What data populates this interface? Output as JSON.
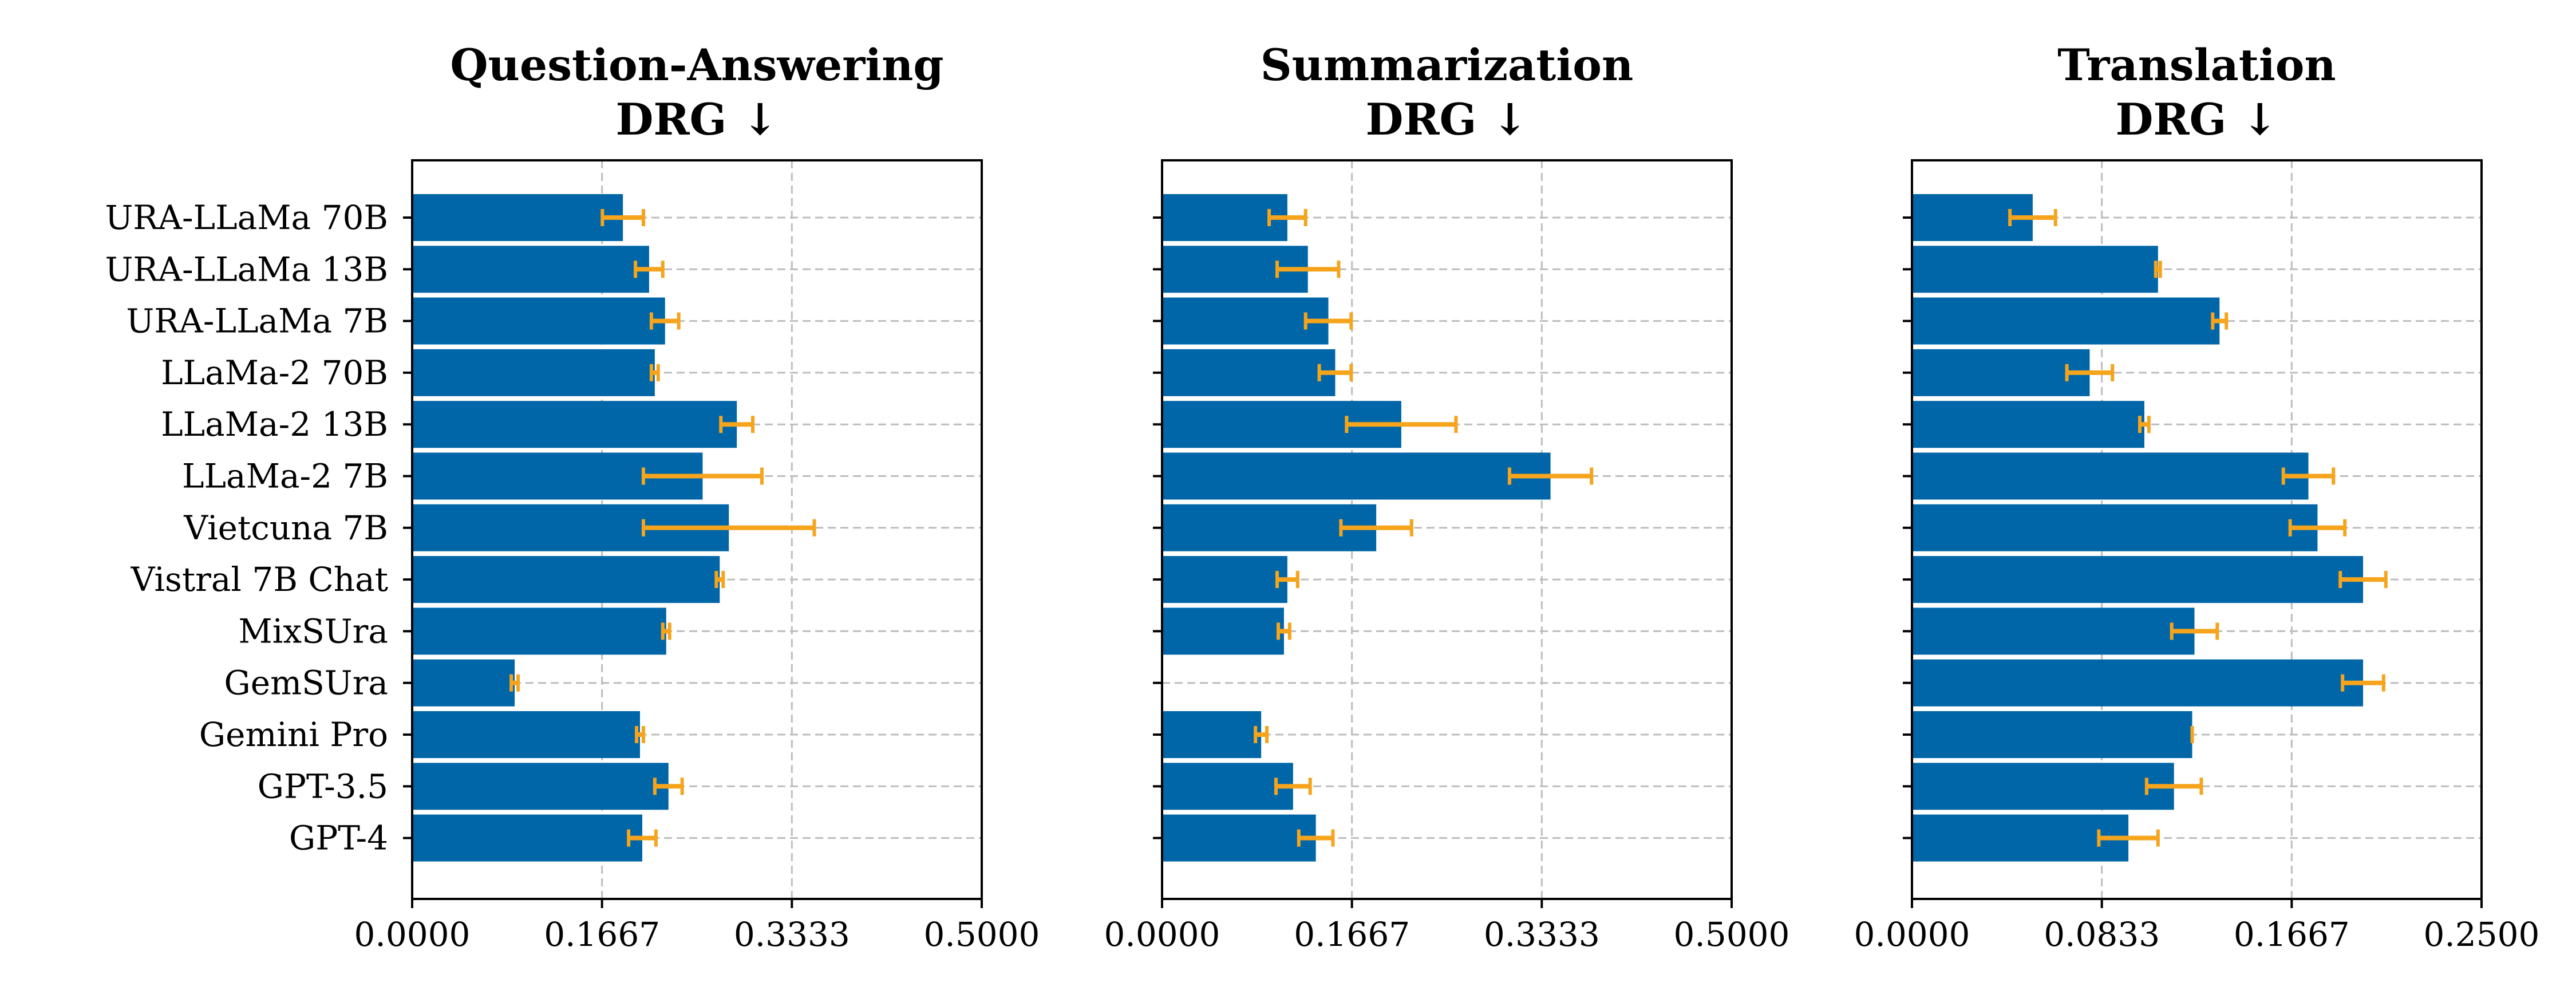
{
  "colors": {
    "bar": "#0066a8",
    "error": "#f5a41c",
    "grid": "#bdbdbd",
    "axis": "#000000"
  },
  "chart_data": [
    {
      "type": "bar",
      "orientation": "horizontal",
      "title": "Question-Answering",
      "subtitle": "DRG ↓",
      "categories": [
        "URA-LLaMa 70B",
        "URA-LLaMa 13B",
        "URA-LLaMa 7B",
        "LLaMa-2 70B",
        "LLaMa-2 13B",
        "LLaMa-2 7B",
        "Vietcuna 7B",
        "Vistral 7B Chat",
        "MixSUra",
        "GemSUra",
        "Gemini Pro",
        "GPT-3.5",
        "GPT-4"
      ],
      "values": [
        0.185,
        0.208,
        0.222,
        0.213,
        0.285,
        0.255,
        0.278,
        0.27,
        0.223,
        0.09,
        0.2,
        0.225,
        0.202
      ],
      "errors": [
        0.018,
        0.012,
        0.012,
        0.003,
        0.014,
        0.052,
        0.075,
        0.003,
        0.003,
        0.003,
        0.003,
        0.012,
        0.012
      ],
      "xlim": [
        0,
        0.5
      ],
      "xticks": [
        "0.0000",
        "0.1667",
        "0.3333",
        "0.5000"
      ],
      "grid": true
    },
    {
      "type": "bar",
      "orientation": "horizontal",
      "title": "Summarization",
      "subtitle": "DRG ↓",
      "categories": [
        "URA-LLaMa 70B",
        "URA-LLaMa 13B",
        "URA-LLaMa 7B",
        "LLaMa-2 70B",
        "LLaMa-2 13B",
        "LLaMa-2 7B",
        "Vietcuna 7B",
        "Vistral 7B Chat",
        "MixSUra",
        "GemSUra",
        "Gemini Pro",
        "GPT-3.5",
        "GPT-4"
      ],
      "values": [
        0.11,
        0.128,
        0.146,
        0.152,
        0.21,
        0.341,
        0.188,
        0.11,
        0.107,
        0.0,
        0.087,
        0.115,
        0.135
      ],
      "errors": [
        0.016,
        0.027,
        0.02,
        0.014,
        0.048,
        0.036,
        0.031,
        0.009,
        0.005,
        0.0,
        0.005,
        0.015,
        0.015
      ],
      "xlim": [
        0,
        0.5
      ],
      "xticks": [
        "0.0000",
        "0.1667",
        "0.3333",
        "0.5000"
      ],
      "grid": true
    },
    {
      "type": "bar",
      "orientation": "horizontal",
      "title": "Translation",
      "subtitle": "DRG ↓",
      "categories": [
        "URA-LLaMa 70B",
        "URA-LLaMa 13B",
        "URA-LLaMa 7B",
        "LLaMa-2 70B",
        "LLaMa-2 13B",
        "LLaMa-2 7B",
        "Vietcuna 7B",
        "Vistral 7B Chat",
        "MixSUra",
        "GemSUra",
        "Gemini Pro",
        "GPT-3.5",
        "GPT-4"
      ],
      "values": [
        0.053,
        0.108,
        0.135,
        0.078,
        0.102,
        0.174,
        0.178,
        0.198,
        0.124,
        0.198,
        0.123,
        0.115,
        0.095
      ],
      "errors": [
        0.01,
        0.001,
        0.003,
        0.01,
        0.002,
        0.011,
        0.012,
        0.01,
        0.01,
        0.009,
        0.0,
        0.012,
        0.013
      ],
      "xlim": [
        0,
        0.25
      ],
      "xticks": [
        "0.0000",
        "0.0833",
        "0.1667",
        "0.2500"
      ],
      "grid": true
    }
  ]
}
